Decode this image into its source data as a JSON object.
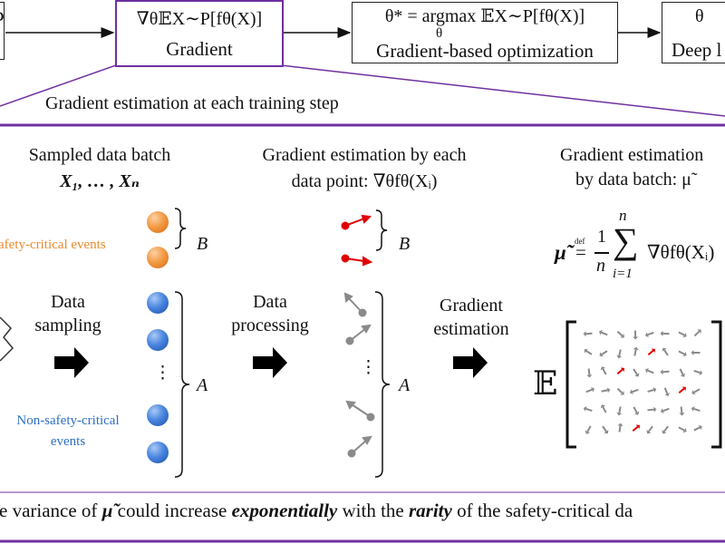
{
  "top": {
    "left_partial": "P",
    "gradient_box": {
      "formula": "∇θ𝔼X∼P[fθ(X)]",
      "label": "Gradient"
    },
    "opt_box": {
      "formula": "θ* = argmax 𝔼X∼P[fθ(X)]",
      "sub": "θ",
      "label": "Gradient-based optimization"
    },
    "deep_box": {
      "formula": "θ",
      "label": "Deep l"
    }
  },
  "step_title": "Gradient estimation at each training step",
  "col1": {
    "title": "Sampled data batch",
    "vars": "X₁, … , Xₙ"
  },
  "col2": {
    "title1": "Gradient estimation by each",
    "title2": "data point: ∇θfθ(Xᵢ)"
  },
  "col3": {
    "title1": "Gradient estimation",
    "title2": "by data batch: μ̃"
  },
  "labels": {
    "safety": "afety-critical events",
    "non_safety_1": "Non-safety-critical",
    "non_safety_2": "events",
    "brace_B": "B",
    "brace_A": "A",
    "vdots": "⋮"
  },
  "steps": {
    "sampling1": "Data",
    "sampling2": "sampling",
    "processing1": "Data",
    "processing2": "processing",
    "estimation1": "Gradient",
    "estimation2": "estimation"
  },
  "formula": {
    "lhs": "μ̃",
    "def": "def",
    "eq": "=",
    "frac_num": "1",
    "frac_den": "n",
    "sum_top": "n",
    "sum_bot": "i=1",
    "rhs": "∇θfθ(Xᵢ)"
  },
  "expectation": "𝔼",
  "bottom": {
    "p1": "e variance of ",
    "mu": "μ̃",
    "p2": " could increase ",
    "exp": "exponentially",
    "p3": " with the ",
    "rarity": "rarity",
    "p4": " of the safety-critical da"
  },
  "colors": {
    "purple": "#7030a0",
    "orange": "#e98b2d",
    "blue": "#2e6fc4",
    "red": "#e00000",
    "gray": "#8a8a8a"
  }
}
